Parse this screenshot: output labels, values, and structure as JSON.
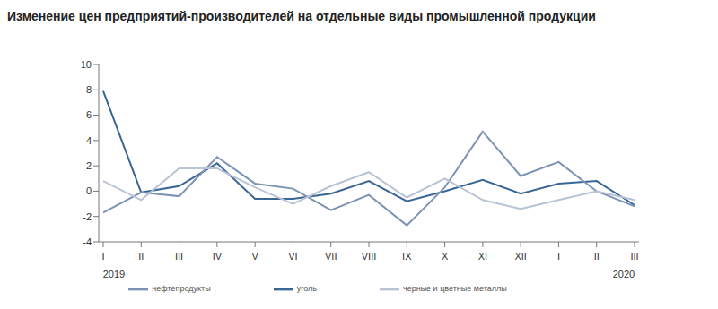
{
  "chart_data": {
    "type": "line",
    "title": "Изменение цен предприятий-производителей на отдельные виды промышленной продукции",
    "categories": [
      "I",
      "II",
      "III",
      "IV",
      "V",
      "VI",
      "VII",
      "VIII",
      "IX",
      "X",
      "XI",
      "XII",
      "I",
      "II",
      "III"
    ],
    "annotations": [
      "2019",
      "2020"
    ],
    "series": [
      {
        "name": "уголь",
        "color": "#3a6696",
        "values": [
          7.9,
          -0.1,
          0.4,
          2.2,
          -0.6,
          -0.6,
          -0.2,
          0.8,
          -0.8,
          0.0,
          0.9,
          -0.2,
          0.6,
          0.8,
          -1.1
        ]
      },
      {
        "name": "нефтепродукты",
        "color": "#7d93b5",
        "values": [
          -1.7,
          -0.1,
          -0.4,
          2.7,
          0.6,
          0.2,
          -1.5,
          -0.3,
          -2.7,
          0.3,
          4.7,
          1.2,
          2.3,
          0.0,
          -1.2
        ]
      },
      {
        "name": "черные и цветные металлы",
        "color": "#b9c3d6",
        "values": [
          0.8,
          -0.7,
          1.8,
          1.8,
          0.3,
          -1.0,
          0.4,
          1.5,
          -0.5,
          1.0,
          -0.7,
          -1.4,
          -0.7,
          0.0,
          -0.7
        ]
      }
    ],
    "ylim": [
      -4,
      10
    ],
    "yticks": [
      -4,
      -2,
      0,
      2,
      4,
      6,
      8,
      10
    ],
    "grid": false,
    "legend": "bottom"
  }
}
